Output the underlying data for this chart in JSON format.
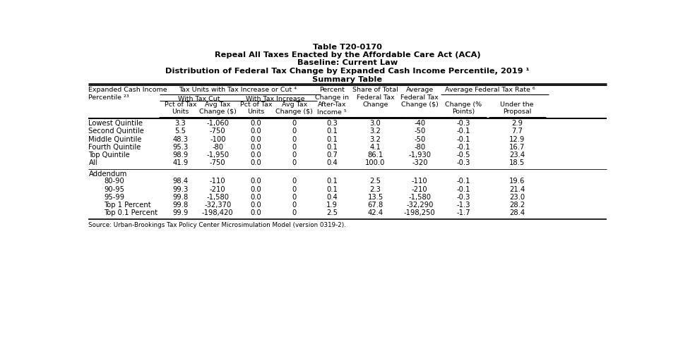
{
  "title_lines": [
    "Table T20-0170",
    "Repeal All Taxes Enacted by the Affordable Care Act (ACA)",
    "Baseline: Current Law",
    "Distribution of Federal Tax Change by Expanded Cash Income Percentile, 2019 ¹",
    "Summary Table"
  ],
  "main_rows": [
    [
      "Lowest Quintile",
      "3.3",
      "-1,060",
      "0.0",
      "0",
      "0.3",
      "3.0",
      "-40",
      "-0.3",
      "2.9"
    ],
    [
      "Second Quintile",
      "5.5",
      "-750",
      "0.0",
      "0",
      "0.1",
      "3.2",
      "-50",
      "-0.1",
      "7.7"
    ],
    [
      "Middle Quintile",
      "48.3",
      "-100",
      "0.0",
      "0",
      "0.1",
      "3.2",
      "-50",
      "-0.1",
      "12.9"
    ],
    [
      "Fourth Quintile",
      "95.3",
      "-80",
      "0.0",
      "0",
      "0.1",
      "4.1",
      "-80",
      "-0.1",
      "16.7"
    ],
    [
      "Top Quintile",
      "98.9",
      "-1,950",
      "0.0",
      "0",
      "0.7",
      "86.1",
      "-1,930",
      "-0.5",
      "23.4"
    ],
    [
      "All",
      "41.9",
      "-750",
      "0.0",
      "0",
      "0.4",
      "100.0",
      "-320",
      "-0.3",
      "18.5"
    ]
  ],
  "addendum_rows": [
    [
      "80-90",
      "98.4",
      "-110",
      "0.0",
      "0",
      "0.1",
      "2.5",
      "-110",
      "-0.1",
      "19.6"
    ],
    [
      "90-95",
      "99.3",
      "-210",
      "0.0",
      "0",
      "0.1",
      "2.3",
      "-210",
      "-0.1",
      "21.4"
    ],
    [
      "95-99",
      "99.8",
      "-1,580",
      "0.0",
      "0",
      "0.4",
      "13.5",
      "-1,580",
      "-0.3",
      "23.0"
    ],
    [
      "Top 1 Percent",
      "99.8",
      "-32,370",
      "0.0",
      "0",
      "1.9",
      "67.8",
      "-32,290",
      "-1.3",
      "28.2"
    ],
    [
      "Top 0.1 Percent",
      "99.9",
      "-198,420",
      "0.0",
      "0",
      "2.5",
      "42.4",
      "-198,250",
      "-1.7",
      "28.4"
    ]
  ],
  "source_text": "Source: Urban-Brookings Tax Policy Center Microsimulation Model (version 0319-2).",
  "bg_color": "#ffffff",
  "text_color": "#000000"
}
